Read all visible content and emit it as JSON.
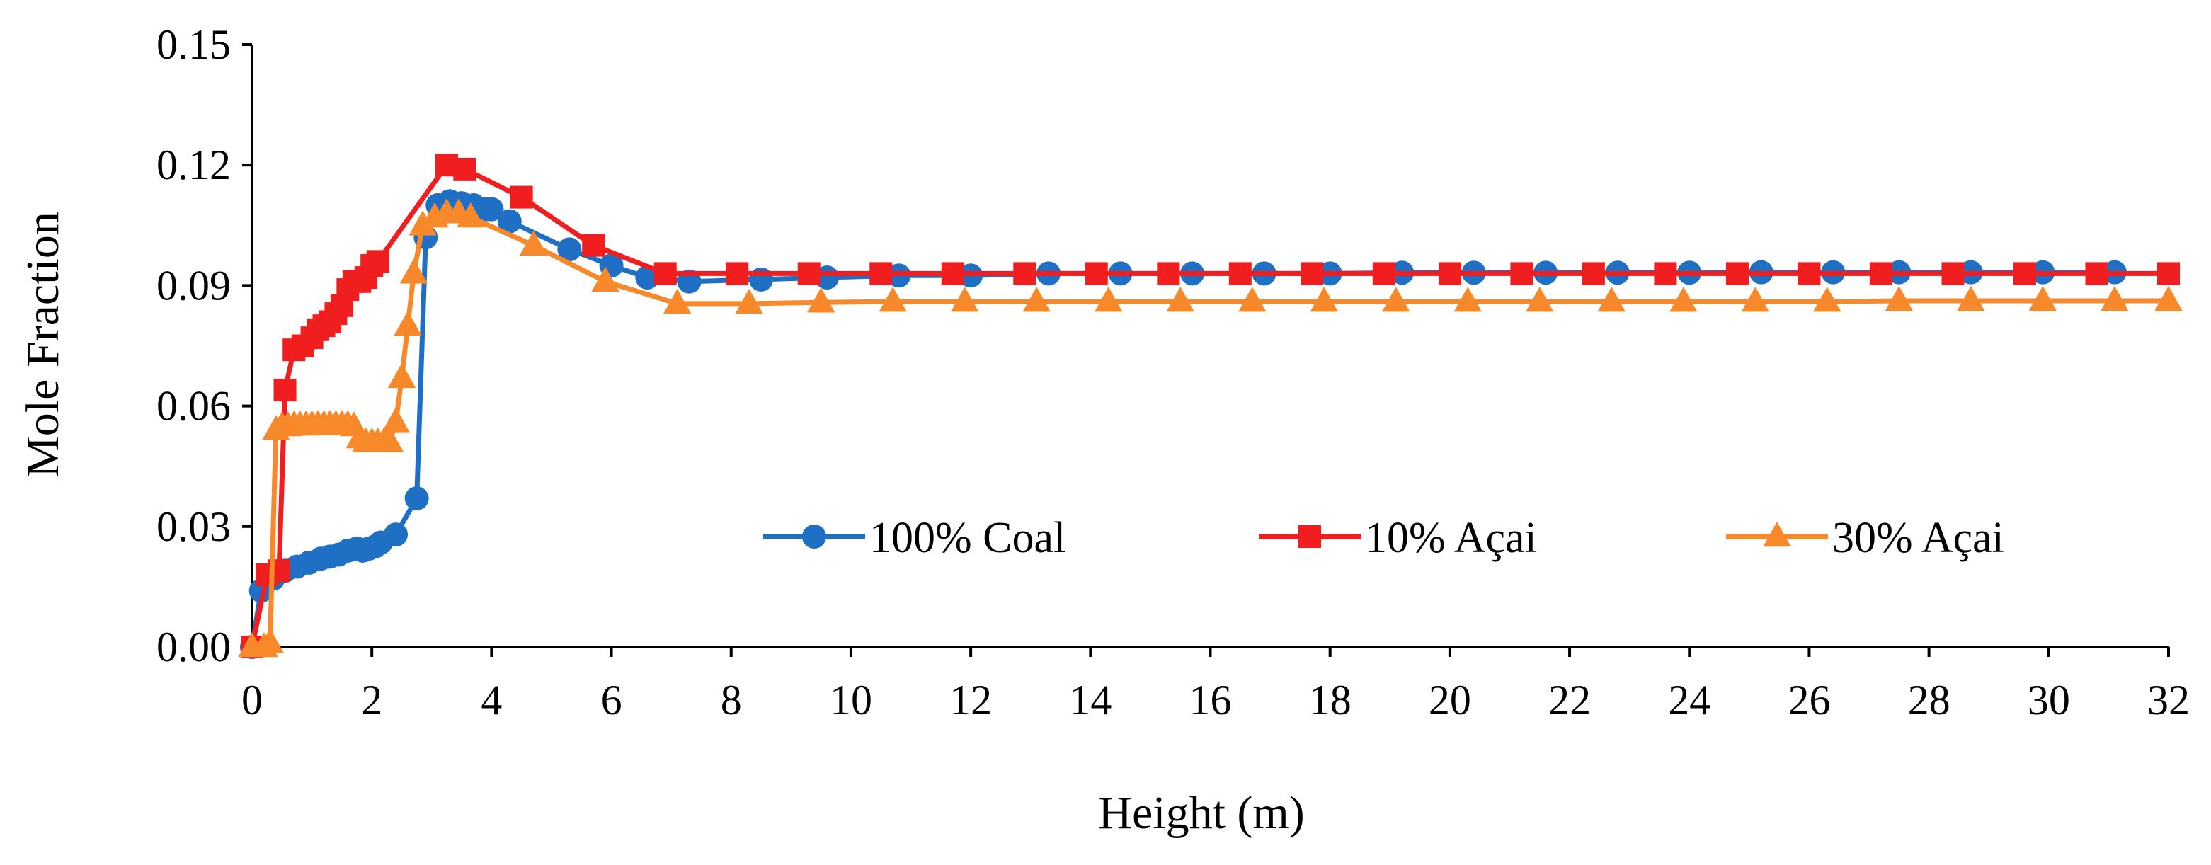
{
  "chart_data": {
    "type": "line",
    "title": "",
    "xlabel": "Height (m)",
    "ylabel": "Mole Fraction",
    "xlim": [
      0,
      32
    ],
    "ylim": [
      0,
      0.15
    ],
    "x_ticks": [
      0,
      2,
      4,
      6,
      8,
      10,
      12,
      14,
      16,
      18,
      20,
      22,
      24,
      26,
      28,
      30,
      32
    ],
    "x_tick_labels": [
      "0",
      "2",
      "4",
      "6",
      "8",
      "10",
      "12",
      "14",
      "16",
      "18",
      "20",
      "22",
      "24",
      "26",
      "28",
      "30",
      "32"
    ],
    "y_ticks": [
      0,
      0.03,
      0.06,
      0.09,
      0.12,
      0.15
    ],
    "y_tick_labels": [
      "0.00",
      "0.03",
      "0.06",
      "0.09",
      "0.12",
      "0.15"
    ],
    "grid": false,
    "legend_position": "lower-right",
    "series": [
      {
        "name": "100% Coal",
        "color": "#1F6FC5",
        "marker": "circle",
        "x": [
          0,
          0.15,
          0.35,
          0.55,
          0.75,
          0.95,
          1.15,
          1.3,
          1.45,
          1.6,
          1.75,
          1.85,
          1.95,
          2.05,
          2.15,
          2.4,
          2.75,
          2.9,
          3.1,
          3.3,
          3.5,
          3.7,
          3.9,
          4.0,
          4.3,
          5.3,
          6.0,
          6.6,
          7.3,
          8.5,
          9.6,
          10.8,
          12.0,
          13.3,
          14.5,
          15.7,
          16.9,
          18.0,
          19.2,
          20.4,
          21.6,
          22.8,
          24.0,
          25.2,
          26.4,
          27.5,
          28.7,
          29.9,
          31.1
        ],
        "y": [
          0.0,
          0.014,
          0.017,
          0.019,
          0.02,
          0.021,
          0.022,
          0.0225,
          0.023,
          0.024,
          0.0245,
          0.024,
          0.0245,
          0.025,
          0.026,
          0.028,
          0.037,
          0.102,
          0.11,
          0.111,
          0.1105,
          0.11,
          0.109,
          0.109,
          0.106,
          0.099,
          0.095,
          0.092,
          0.091,
          0.0915,
          0.092,
          0.0925,
          0.0925,
          0.093,
          0.093,
          0.093,
          0.093,
          0.093,
          0.0932,
          0.0932,
          0.0932,
          0.0932,
          0.0932,
          0.0933,
          0.0933,
          0.0933,
          0.0933,
          0.0933,
          0.0933
        ]
      },
      {
        "name": "10% Açai",
        "color": "#F01E1E",
        "marker": "square",
        "x": [
          0,
          0.25,
          0.45,
          0.55,
          0.7,
          0.85,
          1.0,
          1.1,
          1.2,
          1.3,
          1.4,
          1.5,
          1.6,
          1.7,
          1.8,
          1.9,
          2.0,
          2.1,
          3.25,
          3.55,
          4.5,
          5.7,
          6.9,
          8.1,
          9.3,
          10.5,
          11.7,
          12.9,
          14.1,
          15.3,
          16.5,
          17.7,
          18.9,
          20.0,
          21.2,
          22.4,
          23.6,
          24.8,
          26.0,
          27.2,
          28.4,
          29.6,
          30.8,
          32.0
        ],
        "y": [
          0.0,
          0.018,
          0.019,
          0.064,
          0.074,
          0.075,
          0.077,
          0.079,
          0.08,
          0.081,
          0.083,
          0.085,
          0.089,
          0.091,
          0.091,
          0.092,
          0.095,
          0.096,
          0.12,
          0.119,
          0.112,
          0.1,
          0.093,
          0.093,
          0.093,
          0.093,
          0.093,
          0.093,
          0.093,
          0.093,
          0.093,
          0.093,
          0.093,
          0.093,
          0.093,
          0.093,
          0.093,
          0.093,
          0.093,
          0.093,
          0.093,
          0.093,
          0.093,
          0.093
        ]
      },
      {
        "name": "30% Açai",
        "color": "#F7892A",
        "marker": "triangle",
        "x": [
          0,
          0.2,
          0.3,
          0.4,
          0.5,
          0.6,
          0.7,
          0.8,
          0.9,
          1.0,
          1.1,
          1.2,
          1.3,
          1.4,
          1.5,
          1.6,
          1.7,
          1.8,
          1.9,
          2.0,
          2.1,
          2.2,
          2.3,
          2.4,
          2.5,
          2.6,
          2.7,
          2.85,
          3.05,
          3.25,
          3.45,
          3.65,
          4.7,
          5.9,
          7.1,
          8.3,
          9.5,
          10.7,
          11.9,
          13.1,
          14.3,
          15.5,
          16.7,
          17.9,
          19.1,
          20.3,
          21.5,
          22.7,
          23.9,
          25.1,
          26.3,
          27.5,
          28.7,
          29.9,
          31.1,
          32.0
        ],
        "y": [
          0.0,
          0.0,
          0.001,
          0.054,
          0.055,
          0.055,
          0.0552,
          0.0552,
          0.0552,
          0.0553,
          0.0553,
          0.0553,
          0.0553,
          0.0553,
          0.0553,
          0.0553,
          0.055,
          0.052,
          0.051,
          0.051,
          0.051,
          0.051,
          0.051,
          0.056,
          0.067,
          0.08,
          0.093,
          0.105,
          0.107,
          0.108,
          0.108,
          0.107,
          0.1,
          0.091,
          0.0855,
          0.0855,
          0.0858,
          0.086,
          0.086,
          0.086,
          0.086,
          0.086,
          0.086,
          0.086,
          0.086,
          0.086,
          0.086,
          0.086,
          0.086,
          0.086,
          0.086,
          0.0862,
          0.0862,
          0.0862,
          0.0862,
          0.0862
        ]
      }
    ]
  }
}
